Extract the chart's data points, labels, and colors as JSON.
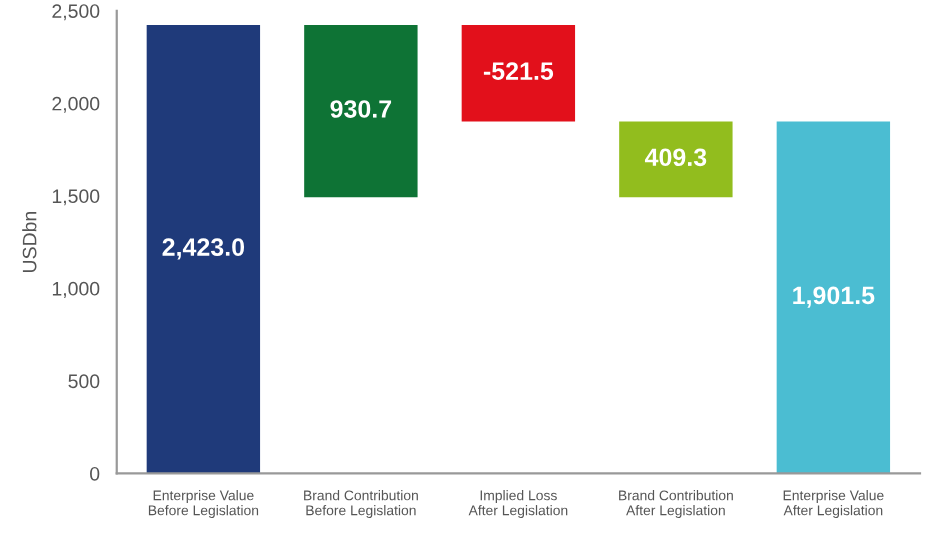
{
  "chart_data": {
    "type": "bar",
    "ylabel": "USDbn",
    "categories": [
      "Enterprise Value\nBefore Legislation",
      "Brand Contribution\nBefore Legislation",
      "Implied Loss\nAfter Legislation",
      "Brand Contribution\nAfter Legislation",
      "Enterprise Value\nAfter Legislation"
    ],
    "values": [
      2423.0,
      930.7,
      -521.5,
      409.3,
      1901.5
    ],
    "base": [
      0,
      1492.3,
      2423.0,
      1492.2,
      0
    ],
    "colors": [
      "#1f3a7a",
      "#0e7335",
      "#e2101b",
      "#92bd1e",
      "#4bbdd2"
    ],
    "value_labels": [
      "2,423.0",
      "930.7",
      "-521.5",
      "409.3",
      "1,901.5"
    ],
    "ylim": [
      0,
      2500
    ],
    "yticks": [
      0,
      500,
      {
        "value": 1000,
        "label": "1,000"
      },
      {
        "value": 1500,
        "label": "1,500"
      },
      {
        "value": 2000,
        "label": "2,000"
      },
      {
        "value": 2500,
        "label": "2,500"
      }
    ],
    "grid": false,
    "legend": false
  }
}
